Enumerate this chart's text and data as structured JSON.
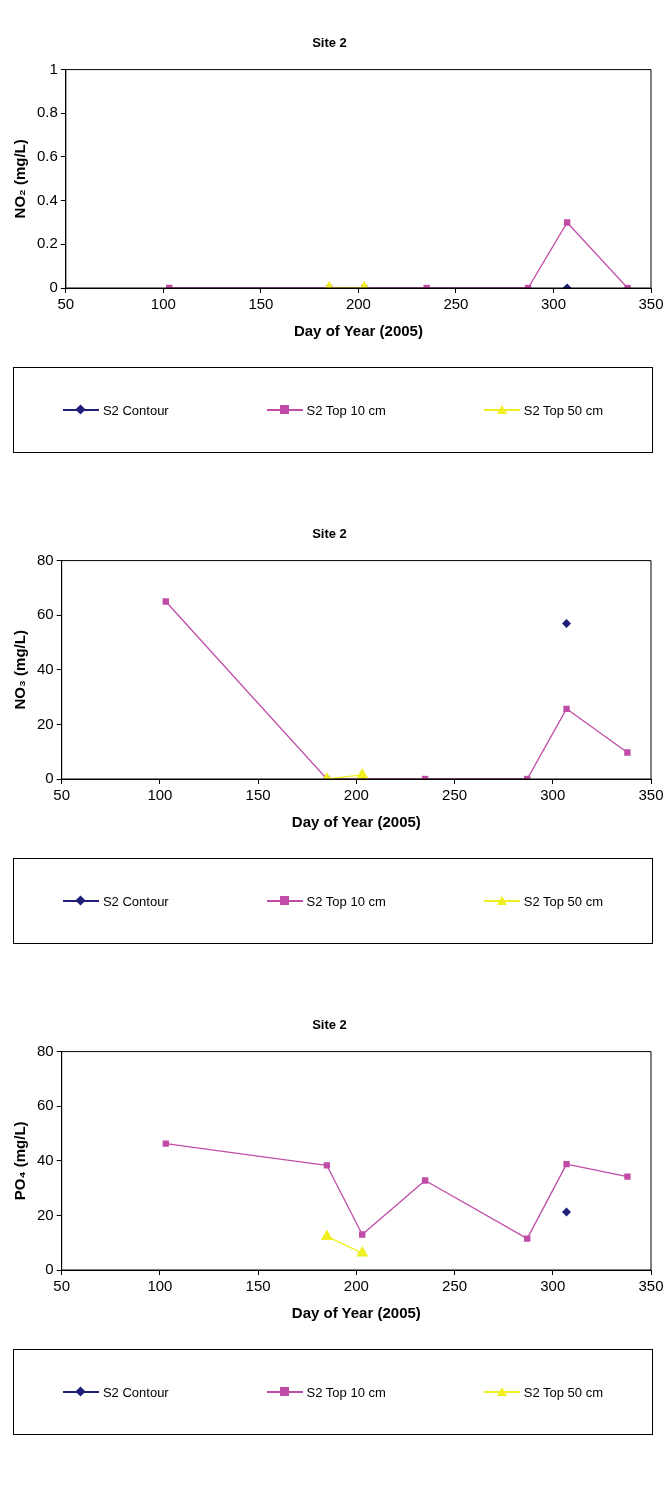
{
  "chart_data": [
    {
      "type": "line",
      "title": "Site 2",
      "xlabel": "Day of Year (2005)",
      "ylabel": "NO₂ (mg/L)",
      "xlim": [
        50,
        350
      ],
      "xticks": [
        50,
        100,
        150,
        200,
        250,
        300,
        350
      ],
      "ylim": [
        0,
        1
      ],
      "yticks": [
        0,
        0.2,
        0.4,
        0.6,
        0.8,
        1
      ],
      "grid": false,
      "legend": "bottom",
      "series": [
        {
          "name": "S2 Contour",
          "color": "#1f1f7a",
          "marker": "diamond",
          "x": [
            307
          ],
          "values": [
            0
          ]
        },
        {
          "name": "S2 Top 10 cm",
          "color": "#c04ca8",
          "marker": "square",
          "x": [
            103,
            185,
            203,
            235,
            287,
            307,
            338
          ],
          "values": [
            0,
            0,
            0,
            0,
            0,
            0.3,
            0
          ]
        },
        {
          "name": "S2 Top 50 cm",
          "color": "#f0f020",
          "marker": "triangle",
          "x": [
            185,
            203
          ],
          "values": [
            0,
            0
          ]
        }
      ]
    },
    {
      "type": "line",
      "title": "Site 2",
      "xlabel": "Day of Year (2005)",
      "ylabel": "NO₃ (mg/L)",
      "xlim": [
        50,
        350
      ],
      "xticks": [
        50,
        100,
        150,
        200,
        250,
        300,
        350
      ],
      "ylim": [
        0,
        80
      ],
      "yticks": [
        0,
        20,
        40,
        60,
        80
      ],
      "grid": false,
      "legend": "bottom",
      "series": [
        {
          "name": "S2 Contour",
          "color": "#1f1f7a",
          "marker": "diamond",
          "x": [
            307
          ],
          "values": [
            57
          ]
        },
        {
          "name": "S2 Top 10 cm",
          "color": "#c04ca8",
          "marker": "square",
          "x": [
            103,
            185,
            203,
            235,
            287,
            307,
            338
          ],
          "values": [
            65,
            0,
            0,
            0,
            0,
            25.7,
            9.7
          ]
        },
        {
          "name": "S2 Top 50 cm",
          "color": "#f0f020",
          "marker": "triangle",
          "x": [
            185,
            203
          ],
          "values": [
            0,
            1.5
          ]
        }
      ]
    },
    {
      "type": "line",
      "title": "Site 2",
      "xlabel": "Day of Year (2005)",
      "ylabel": "PO₄ (mg/L)",
      "xlim": [
        50,
        350
      ],
      "xticks": [
        50,
        100,
        150,
        200,
        250,
        300,
        350
      ],
      "ylim": [
        0,
        80
      ],
      "yticks": [
        0,
        20,
        40,
        60,
        80
      ],
      "grid": false,
      "legend": "bottom",
      "series": [
        {
          "name": "S2 Contour",
          "color": "#1f1f7a",
          "marker": "diamond",
          "x": [
            307
          ],
          "values": [
            21.2
          ]
        },
        {
          "name": "S2 Top 10 cm",
          "color": "#c04ca8",
          "marker": "square",
          "x": [
            103,
            185,
            203,
            235,
            287,
            307,
            338
          ],
          "values": [
            46.3,
            38.3,
            13,
            32.8,
            11.5,
            38.8,
            34.2
          ]
        },
        {
          "name": "S2 Top 50 cm",
          "color": "#f0f020",
          "marker": "triangle",
          "x": [
            185,
            203
          ],
          "values": [
            12.3,
            6.2
          ]
        }
      ]
    }
  ]
}
